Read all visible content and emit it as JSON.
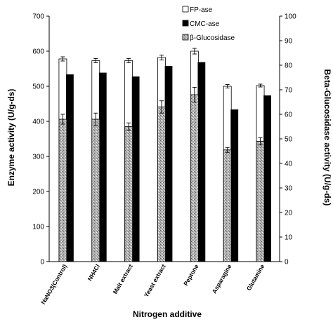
{
  "chart_data": {
    "type": "bar",
    "xlabel": "Nitrogen additive",
    "ylabel": "Enzyme activity  (U/g-ds)",
    "ylabel_right": "Beta-Glucosidase activity  (U/g-ds)",
    "ylim": [
      0,
      700
    ],
    "ylim_right": [
      0,
      100
    ],
    "yticks": [
      "0",
      "100",
      "200",
      "300",
      "400",
      "500",
      "600",
      "700"
    ],
    "yticks_right": [
      "0",
      "10",
      "20",
      "30",
      "40",
      "50",
      "60",
      "70",
      "80",
      "90",
      "100"
    ],
    "categories": [
      "NaNO3(Control)",
      "NH4Cl",
      "Malt extract",
      "Yeast extract",
      "Peptone",
      "Asparagine",
      "Glutamine"
    ],
    "legend_position": "top-right",
    "series": [
      {
        "name": "FP-ase",
        "axis": "left",
        "fill": "#ffffff",
        "values": [
          578,
          573,
          573,
          582,
          600,
          500,
          502
        ],
        "errors": [
          6,
          6,
          6,
          7,
          8,
          5,
          4
        ]
      },
      {
        "name": "CMC-ase",
        "axis": "left",
        "fill": "#000000",
        "values": [
          533,
          538,
          527,
          557,
          568,
          433,
          473
        ],
        "errors": [
          0,
          0,
          0,
          0,
          0,
          0,
          0
        ]
      },
      {
        "name": "β-Glucosidase",
        "axis": "right",
        "fill": "#a8a8a8",
        "values": [
          58,
          58,
          55,
          63,
          68,
          45.5,
          49
        ],
        "errors": [
          2,
          2.5,
          1.5,
          2.5,
          3,
          1,
          1.5
        ]
      }
    ]
  }
}
